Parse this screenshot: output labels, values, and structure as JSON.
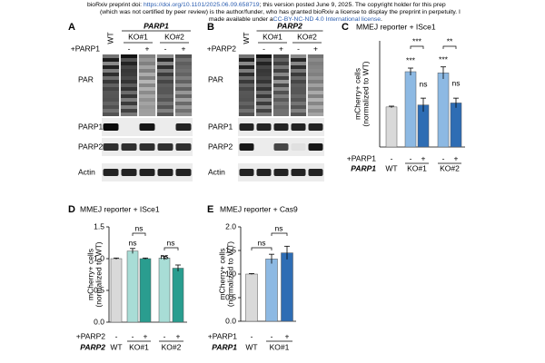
{
  "header": {
    "line1_pre": "bioRxiv preprint doi: ",
    "line1_link": "https://doi.org/10.1101/2025.06.09.658719",
    "line1_post": "; this version posted June 9, 2025. The copyright holder for this prep",
    "line2": "(which was not certified by peer review) is the author/funder, who has granted bioRxiv a license to display the preprint in perpetuity. I",
    "line3_pre": "made available under a",
    "line3_link": "CC-BY-NC-ND 4.0 International license",
    "line3_post": "."
  },
  "blots": [
    {
      "label": "A",
      "gene": "PARP1",
      "wt": "WT",
      "ko": [
        "KO#1",
        "KO#2"
      ],
      "rescue": "+PARP1",
      "signs": [
        "-",
        "+",
        "-",
        "+"
      ],
      "rows": [
        "PAR",
        "PARP1",
        "PARP2",
        "Actin"
      ]
    },
    {
      "label": "B",
      "gene": "PARP2",
      "wt": "WT",
      "ko": [
        "KO#1",
        "KO#2"
      ],
      "rescue": "+PARP2",
      "signs": [
        "-",
        "+",
        "-",
        "+"
      ],
      "rows": [
        "PAR",
        "PARP1",
        "PARP2",
        "Actin"
      ]
    }
  ],
  "chart_data": [
    {
      "type": "bar",
      "label": "C",
      "title": "MMEJ reporter + ISce1",
      "ylabel": [
        "mCherry+ cells",
        "(normalized to WT)"
      ],
      "categories": [
        "-",
        "-",
        "+",
        "-",
        "+"
      ],
      "groups": [
        "WT",
        "KO#1",
        "KO#2"
      ],
      "row_labels": [
        "+PARP1",
        "PARP1"
      ],
      "values": [
        1.0,
        1.88,
        1.05,
        1.85,
        1.1
      ],
      "errors": [
        0.02,
        0.09,
        0.17,
        0.15,
        0.12
      ],
      "colors": [
        "#d9d9d9",
        "#8db9e3",
        "#2e6db4",
        "#8db9e3",
        "#2e6db4"
      ],
      "ylim": [
        0,
        2.65
      ],
      "annotations": [
        "***",
        "**",
        "***",
        "***",
        "ns",
        "ns"
      ]
    },
    {
      "type": "bar",
      "label": "D",
      "title": "MMEJ reporter + ISce1",
      "ylabel": [
        "mCherry+ cells",
        "(normalized to WT)"
      ],
      "categories": [
        "-",
        "-",
        "+",
        "-",
        "+"
      ],
      "groups": [
        "WT",
        "KO#1",
        "KO#2"
      ],
      "row_labels": [
        "+PARP2",
        "PARP2"
      ],
      "values": [
        1.0,
        1.12,
        1.0,
        1.01,
        0.85
      ],
      "errors": [
        0.01,
        0.04,
        0.01,
        0.03,
        0.05
      ],
      "colors": [
        "#d9d9d9",
        "#a8ddd6",
        "#2a9d8f",
        "#a8ddd6",
        "#2a9d8f"
      ],
      "ylim": [
        0,
        1.5
      ],
      "yticks": [
        {
          "value": 0,
          "label": "0.0"
        },
        {
          "value": 0.5,
          "label": "0.5"
        },
        {
          "value": 1,
          "label": "1.0"
        },
        {
          "value": 1.5,
          "label": "1.5"
        }
      ],
      "annotations": [
        "ns",
        "ns",
        "ns",
        "ns"
      ]
    },
    {
      "type": "bar",
      "label": "E",
      "title": "MMEJ reporter + Cas9",
      "ylabel": [
        "mCherry+ cells",
        "(normalized to WT)"
      ],
      "categories": [
        "-",
        "-",
        "+"
      ],
      "groups": [
        "WT",
        "KO#1"
      ],
      "row_labels": [
        "+PARP1",
        "PARP1"
      ],
      "values": [
        1.0,
        1.32,
        1.45
      ],
      "errors": [
        0.01,
        0.1,
        0.14
      ],
      "colors": [
        "#d9d9d9",
        "#8db9e3",
        "#2e6db4"
      ],
      "ylim": [
        0,
        2.0
      ],
      "yticks": [
        {
          "value": 0,
          "label": "0.0"
        },
        {
          "value": 0.5,
          "label": "0.5"
        },
        {
          "value": 1,
          "label": "1.0"
        },
        {
          "value": 1.5,
          "label": "1.5"
        },
        {
          "value": 2,
          "label": "2.0"
        }
      ],
      "annotations": [
        "ns",
        "ns"
      ]
    }
  ]
}
